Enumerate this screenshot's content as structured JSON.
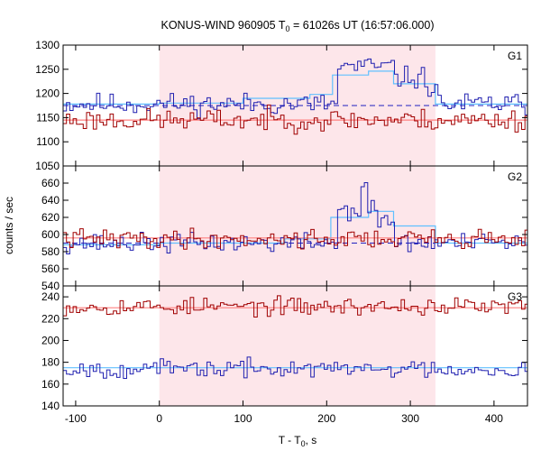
{
  "chart_data": {
    "type": "line",
    "title": "KONUS-WIND 960905 T",
    "title_sub": "0",
    "title_rest": " = 61026s UT (16:57:06.000)",
    "xlabel": "T - T",
    "xlabel_sub": "0",
    "xlabel_rest": ", s",
    "ylabel": "counts / sec",
    "xlim": [
      -115,
      440
    ],
    "x_ticks": [
      -100,
      0,
      100,
      200,
      300,
      400
    ],
    "highlight_interval": [
      0,
      330
    ],
    "colors": {
      "red_series": "#a00000",
      "blue_series": "#2020b0",
      "red_fit": "#ff8080",
      "blue_fit": "#60c0ff",
      "blue_background": "#2020c0",
      "interval_fill": "#fde6ea"
    },
    "panels": [
      {
        "label": "G1",
        "ylim": [
          1050,
          1300
        ],
        "y_ticks": [
          1050,
          1100,
          1150,
          1200,
          1250,
          1300
        ],
        "blue_background_level": 1175,
        "series": [
          {
            "color": "blue",
            "baseline": 1178,
            "noise": 14,
            "seed": 11,
            "bumps": [
              {
                "x": [
                  210,
                  280
                ],
                "level": 1255
              },
              {
                "x": [
                  280,
                  320
                ],
                "level": 1232
              },
              {
                "x": [
                  320,
                  330
                ],
                "level": 1210
              }
            ]
          },
          {
            "color": "red",
            "baseline": 1145,
            "noise": 14,
            "seed": 23,
            "bumps": []
          }
        ],
        "fit_lines": [
          {
            "color": "lightblue",
            "steps": [
              [
                -115,
                1178
              ],
              [
                0,
                1180
              ],
              [
                100,
                1190
              ],
              [
                180,
                1198
              ],
              [
                207,
                1238
              ],
              [
                250,
                1246
              ],
              [
                280,
                1220
              ],
              [
                330,
                1178
              ],
              [
                440,
                1178
              ]
            ]
          },
          {
            "color": "pink",
            "steps": [
              [
                -115,
                1145
              ],
              [
                440,
                1145
              ]
            ]
          }
        ]
      },
      {
        "label": "G2",
        "ylim": [
          540,
          680
        ],
        "y_ticks": [
          540,
          560,
          580,
          600,
          620,
          640,
          660
        ],
        "blue_background_level": 590,
        "series": [
          {
            "color": "blue",
            "baseline": 590,
            "noise": 7,
            "seed": 37,
            "bumps": [
              {
                "x": [
                  210,
                  260
                ],
                "level": 628
              },
              {
                "x": [
                  240,
                  248
                ],
                "level": 655
              },
              {
                "x": [
                  260,
                  280
                ],
                "level": 615
              }
            ]
          },
          {
            "color": "red",
            "baseline": 595,
            "noise": 7,
            "seed": 41,
            "bumps": []
          }
        ],
        "fit_lines": [
          {
            "color": "lightblue",
            "steps": [
              [
                -115,
                588
              ],
              [
                0,
                590
              ],
              [
                150,
                595
              ],
              [
                205,
                620
              ],
              [
                250,
                627
              ],
              [
                280,
                610
              ],
              [
                330,
                590
              ],
              [
                440,
                590
              ]
            ]
          },
          {
            "color": "pink",
            "steps": [
              [
                -115,
                596
              ],
              [
                440,
                596
              ]
            ]
          }
        ]
      },
      {
        "label": "G3",
        "ylim": [
          140,
          250
        ],
        "y_ticks": [
          140,
          160,
          180,
          200,
          220,
          240
        ],
        "blue_background_level": null,
        "series": [
          {
            "color": "red",
            "baseline": 231,
            "noise": 5,
            "seed": 53,
            "bumps": []
          },
          {
            "color": "blue",
            "baseline": 174,
            "noise": 5,
            "seed": 67,
            "bumps": []
          }
        ],
        "fit_lines": [
          {
            "color": "pink",
            "steps": [
              [
                -115,
                230
              ],
              [
                440,
                230
              ]
            ]
          },
          {
            "color": "lightblue",
            "steps": [
              [
                -115,
                175
              ],
              [
                440,
                175
              ]
            ]
          }
        ]
      }
    ]
  }
}
